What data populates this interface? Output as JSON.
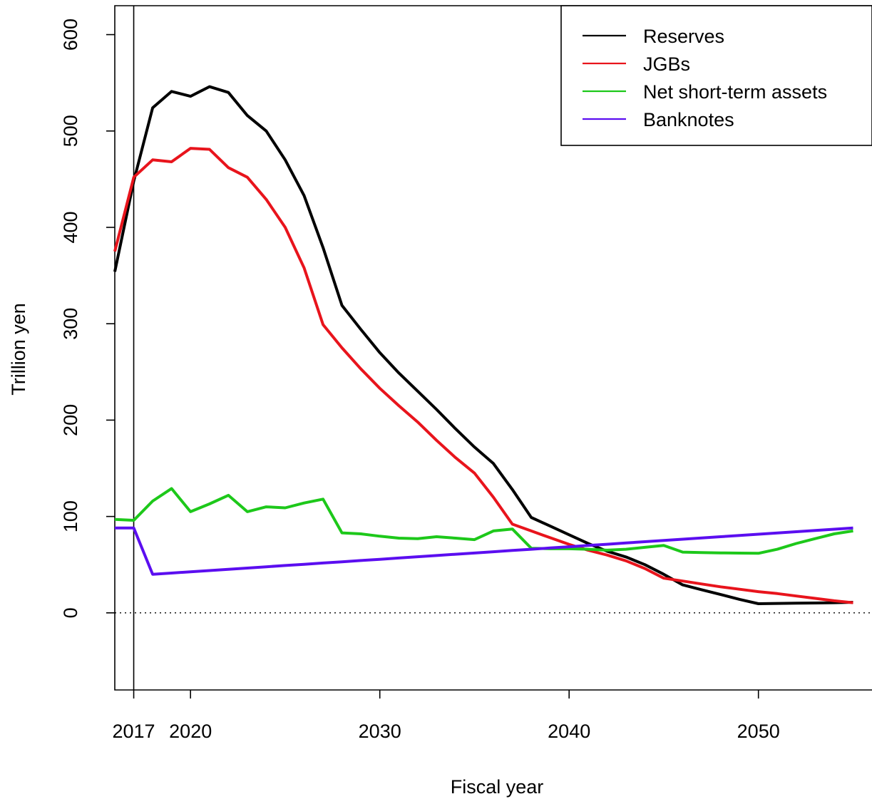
{
  "chart_data": {
    "type": "line",
    "title": "",
    "xlabel": "Fiscal year",
    "ylabel": "Trillion yen",
    "xlim": [
      2016,
      2056
    ],
    "ylim": [
      -80,
      630
    ],
    "x_ticks": [
      2017,
      2020,
      2030,
      2040,
      2050
    ],
    "y_ticks": [
      0,
      100,
      200,
      300,
      400,
      500,
      600
    ],
    "reference_vline": 2017,
    "reference_hline": 0,
    "grid": false,
    "legend_position": "top-right",
    "colors": {
      "Reserves": "#000000",
      "JGBs": "#e8141c",
      "Net short-term assets": "#1dc81a",
      "Banknotes": "#5b0ef0"
    },
    "x": [
      2016,
      2017,
      2018,
      2019,
      2020,
      2021,
      2022,
      2023,
      2024,
      2025,
      2026,
      2027,
      2028,
      2029,
      2030,
      2031,
      2032,
      2033,
      2034,
      2035,
      2036,
      2037,
      2038,
      2039,
      2040,
      2041,
      2042,
      2043,
      2044,
      2045,
      2046,
      2047,
      2048,
      2049,
      2050,
      2051,
      2052,
      2053,
      2054,
      2055
    ],
    "series": [
      {
        "name": "Reserves",
        "values": [
          354,
          448,
          524,
          541,
          536,
          546,
          540,
          516,
          500,
          470,
          433,
          379,
          319,
          294,
          270,
          249,
          230,
          211,
          191,
          172,
          155,
          128,
          99,
          90,
          81,
          72,
          64,
          58,
          50,
          40,
          29,
          24,
          19,
          14,
          9.5,
          9.8,
          10,
          10.2,
          10.5,
          11
        ]
      },
      {
        "name": "JGBs",
        "values": [
          375,
          452,
          470,
          468,
          482,
          481,
          462,
          452,
          429,
          400,
          358,
          299,
          275,
          253,
          233,
          215,
          198,
          179,
          161,
          145,
          120,
          92,
          85,
          78,
          71,
          65,
          60,
          54,
          46,
          36,
          33,
          30,
          27,
          24.5,
          22,
          20,
          17.5,
          15,
          12.5,
          10.5
        ]
      },
      {
        "name": "Net short-term assets",
        "values": [
          97,
          96,
          116,
          129,
          105,
          113,
          122,
          105,
          110,
          109,
          114,
          118,
          83,
          82,
          79.5,
          77.5,
          77,
          79,
          77.5,
          76,
          85,
          87,
          67,
          66.5,
          66.5,
          66,
          65,
          66,
          68,
          70,
          63,
          62.5,
          62.2,
          62,
          61.8,
          66,
          72,
          77,
          82,
          85
        ]
      },
      {
        "name": "Banknotes",
        "values": [
          88,
          88,
          40,
          41.3,
          42.6,
          43.9,
          45.2,
          46.5,
          47.8,
          49.1,
          50.4,
          51.7,
          53,
          54.3,
          55.6,
          56.9,
          58.2,
          59.5,
          60.8,
          62.1,
          63.4,
          64.7,
          66,
          67.3,
          68.6,
          69.9,
          71.2,
          72.5,
          73.8,
          75.1,
          76.4,
          77.7,
          79,
          80.3,
          81.6,
          82.9,
          84.2,
          85.5,
          86.8,
          88.1
        ]
      }
    ]
  }
}
